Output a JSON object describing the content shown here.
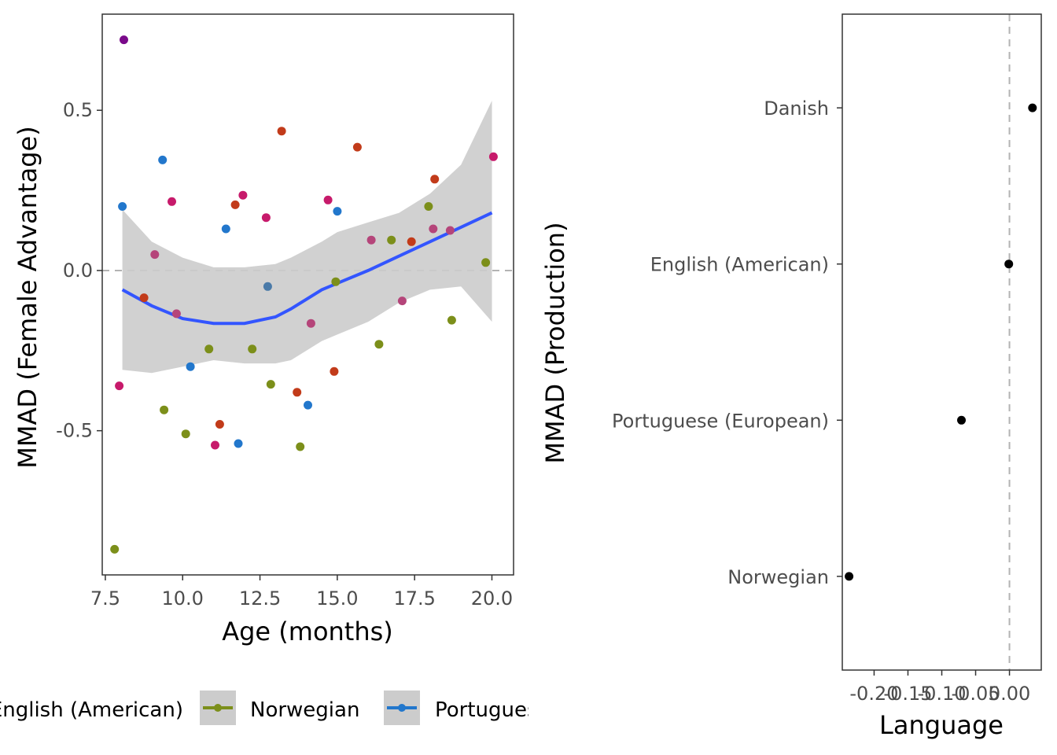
{
  "colors": {
    "danish": "#7a0a8a",
    "english": "#c71a6b",
    "english_b": "#b5457a",
    "norwegian": "#7c8f1a",
    "portuguese": "#2277cc",
    "portuguese_b": "#4a7aa8",
    "other": "#c23b1a",
    "smooth": "#3355ff",
    "band": "#cccccc",
    "reference": "#b3b3b3",
    "point": "#000000"
  },
  "chart_data": [
    {
      "type": "scatter",
      "xlabel": "Age (months)",
      "ylabel": "MMAD (Female Advantage)",
      "xlim": [
        7.4,
        20.7
      ],
      "ylim": [
        -0.95,
        0.8
      ],
      "xticks": [
        7.5,
        10.0,
        12.5,
        15.0,
        17.5,
        20.0
      ],
      "xtick_labels": [
        "7.5",
        "10.0",
        "12.5",
        "15.0",
        "17.5",
        "20.0"
      ],
      "yticks": [
        0.5,
        0.0,
        -0.5
      ],
      "ytick_labels": [
        "0.5",
        "0.0",
        "-0.5"
      ],
      "reference_line_y": 0.0,
      "grid": false,
      "points": [
        {
          "x": 8.1,
          "y": 0.72,
          "group": "danish"
        },
        {
          "x": 7.8,
          "y": -0.87,
          "group": "norwegian"
        },
        {
          "x": 7.95,
          "y": -0.36,
          "group": "english"
        },
        {
          "x": 8.05,
          "y": 0.2,
          "group": "portuguese"
        },
        {
          "x": 8.75,
          "y": -0.085,
          "group": "other"
        },
        {
          "x": 9.1,
          "y": 0.05,
          "group": "english_b"
        },
        {
          "x": 9.35,
          "y": 0.345,
          "group": "portuguese"
        },
        {
          "x": 9.4,
          "y": -0.435,
          "group": "norwegian"
        },
        {
          "x": 9.65,
          "y": 0.215,
          "group": "english"
        },
        {
          "x": 9.8,
          "y": -0.135,
          "group": "english_b"
        },
        {
          "x": 10.1,
          "y": -0.51,
          "group": "norwegian"
        },
        {
          "x": 10.25,
          "y": -0.3,
          "group": "portuguese"
        },
        {
          "x": 10.85,
          "y": -0.245,
          "group": "norwegian"
        },
        {
          "x": 11.05,
          "y": -0.545,
          "group": "english"
        },
        {
          "x": 11.2,
          "y": -0.48,
          "group": "other"
        },
        {
          "x": 11.4,
          "y": 0.13,
          "group": "portuguese"
        },
        {
          "x": 11.7,
          "y": 0.205,
          "group": "other"
        },
        {
          "x": 11.8,
          "y": -0.54,
          "group": "portuguese"
        },
        {
          "x": 11.95,
          "y": 0.235,
          "group": "english"
        },
        {
          "x": 12.25,
          "y": -0.245,
          "group": "norwegian"
        },
        {
          "x": 12.7,
          "y": 0.165,
          "group": "english"
        },
        {
          "x": 12.75,
          "y": -0.05,
          "group": "portuguese_b"
        },
        {
          "x": 12.85,
          "y": -0.355,
          "group": "norwegian"
        },
        {
          "x": 13.2,
          "y": 0.435,
          "group": "other"
        },
        {
          "x": 13.7,
          "y": -0.38,
          "group": "other"
        },
        {
          "x": 13.8,
          "y": -0.55,
          "group": "norwegian"
        },
        {
          "x": 14.05,
          "y": -0.42,
          "group": "portuguese"
        },
        {
          "x": 14.15,
          "y": -0.165,
          "group": "english_b"
        },
        {
          "x": 14.7,
          "y": 0.22,
          "group": "english"
        },
        {
          "x": 14.9,
          "y": -0.315,
          "group": "other"
        },
        {
          "x": 14.95,
          "y": -0.035,
          "group": "norwegian"
        },
        {
          "x": 15.0,
          "y": 0.185,
          "group": "portuguese"
        },
        {
          "x": 15.65,
          "y": 0.385,
          "group": "other"
        },
        {
          "x": 16.1,
          "y": 0.095,
          "group": "english_b"
        },
        {
          "x": 16.35,
          "y": -0.23,
          "group": "norwegian"
        },
        {
          "x": 16.75,
          "y": 0.095,
          "group": "norwegian"
        },
        {
          "x": 17.1,
          "y": -0.095,
          "group": "english_b"
        },
        {
          "x": 17.4,
          "y": 0.09,
          "group": "other"
        },
        {
          "x": 17.95,
          "y": 0.2,
          "group": "norwegian"
        },
        {
          "x": 18.1,
          "y": 0.13,
          "group": "english_b"
        },
        {
          "x": 18.15,
          "y": 0.285,
          "group": "other"
        },
        {
          "x": 18.65,
          "y": 0.125,
          "group": "english_b"
        },
        {
          "x": 18.7,
          "y": -0.155,
          "group": "norwegian"
        },
        {
          "x": 19.8,
          "y": 0.025,
          "group": "norwegian"
        },
        {
          "x": 20.05,
          "y": 0.355,
          "group": "english"
        }
      ],
      "smooth": {
        "x": [
          8.05,
          9.0,
          10.0,
          11.0,
          12.0,
          13.0,
          13.5,
          14.5,
          15.0,
          16.0,
          17.0,
          18.0,
          19.0,
          20.0
        ],
        "y": [
          -0.06,
          -0.11,
          -0.15,
          -0.165,
          -0.165,
          -0.145,
          -0.12,
          -0.06,
          -0.04,
          0.0,
          0.045,
          0.09,
          0.135,
          0.18
        ],
        "lower": [
          -0.31,
          -0.32,
          -0.3,
          -0.28,
          -0.29,
          -0.29,
          -0.28,
          -0.22,
          -0.2,
          -0.16,
          -0.1,
          -0.06,
          -0.05,
          -0.16
        ],
        "upper": [
          0.19,
          0.09,
          0.04,
          0.01,
          0.01,
          0.02,
          0.04,
          0.09,
          0.12,
          0.15,
          0.18,
          0.24,
          0.33,
          0.53
        ]
      },
      "legend": {
        "position": "bottom",
        "items": [
          {
            "label": "English (American)",
            "group": "english"
          },
          {
            "label": "Norwegian",
            "group": "norwegian"
          },
          {
            "label": "Portuguese (European)",
            "group": "portuguese"
          }
        ]
      }
    },
    {
      "type": "scatter",
      "xlabel": "Language",
      "ylabel": "MMAD (Production)",
      "xlim": [
        -0.247,
        0.047
      ],
      "xticks": [
        -0.2,
        -0.15,
        -0.1,
        -0.05,
        0.0
      ],
      "xtick_labels": [
        "-0.20",
        "-0.15",
        "-0.10",
        "-0.05",
        "0.00"
      ],
      "reference_line_x": 0.0,
      "grid": false,
      "categories": [
        "Danish",
        "English (American)",
        "Portuguese (European)",
        "Norwegian"
      ],
      "values": [
        0.034,
        -0.001,
        -0.071,
        -0.237
      ]
    }
  ]
}
